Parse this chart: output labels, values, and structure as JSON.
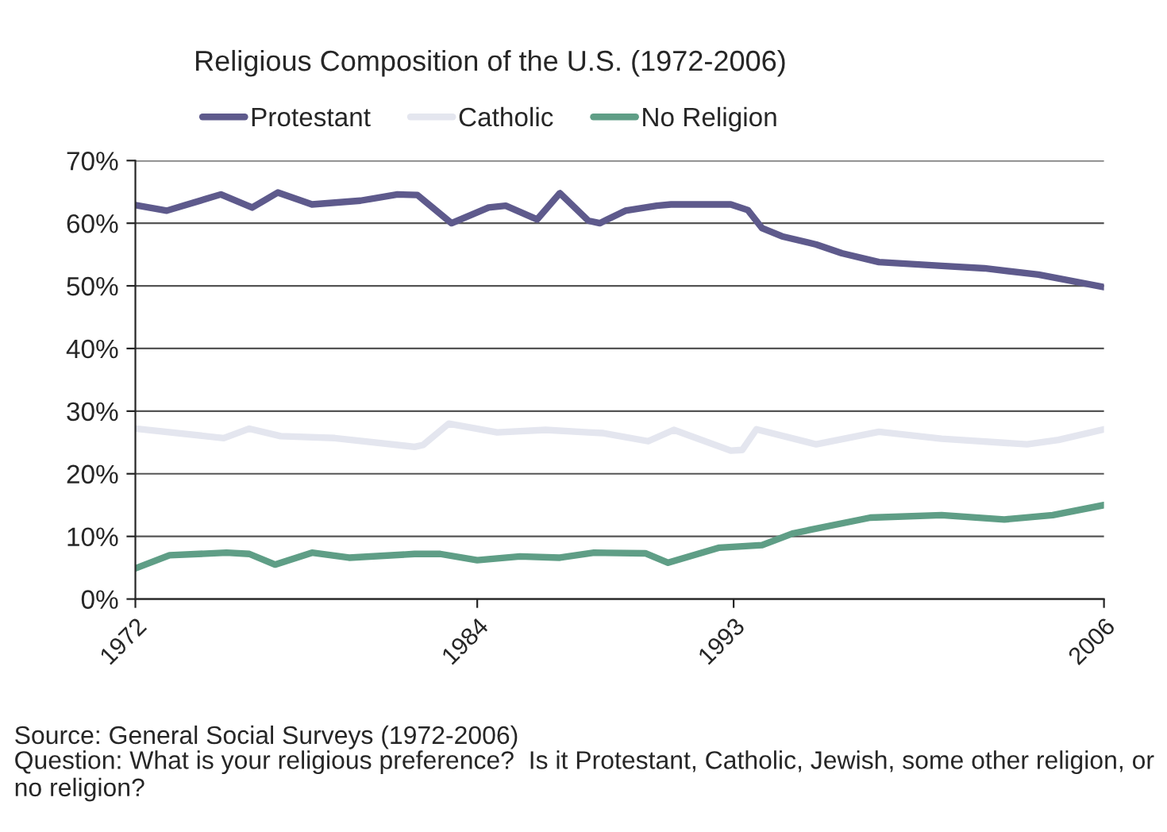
{
  "chart_data": {
    "type": "line",
    "title": "Religious Composition of the U.S. (1972-2006)",
    "xlim": [
      1972,
      2006
    ],
    "xticks": [
      1972,
      1984,
      1993,
      2006
    ],
    "ylim": [
      0,
      70
    ],
    "yticks": [
      {
        "value": 0,
        "label": "0%"
      },
      {
        "value": 10,
        "label": "10%"
      },
      {
        "value": 20,
        "label": "20%"
      },
      {
        "value": 30,
        "label": "30%"
      },
      {
        "value": 40,
        "label": "40%"
      },
      {
        "value": 50,
        "label": "50%"
      },
      {
        "value": 60,
        "label": "60%"
      },
      {
        "value": 70,
        "label": "70%"
      }
    ],
    "grid": "y",
    "legend": "top",
    "marker": "none",
    "line_style": "solid",
    "series": [
      {
        "name": "Protestant",
        "color": "#5e5a8c",
        "x": [
          1972.0,
          1973.1,
          1975.0,
          1976.1,
          1977.0,
          1978.2,
          1979.9,
          1981.2,
          1981.9,
          1983.1,
          1984.4,
          1985.0,
          1986.1,
          1986.9,
          1987.9,
          1988.3,
          1989.2,
          1990.3,
          1990.8,
          1992.9,
          1993.5,
          1994.0,
          1994.7,
          1995.9,
          1996.8,
          1998.1,
          2000.3,
          2001.8,
          2003.7,
          2006.0
        ],
        "values": [
          62.9,
          62.0,
          64.6,
          62.5,
          64.9,
          63.0,
          63.6,
          64.6,
          64.5,
          60.0,
          62.5,
          62.8,
          60.6,
          64.8,
          60.4,
          60.0,
          62.0,
          62.8,
          63.0,
          63.0,
          62.1,
          59.2,
          57.9,
          56.6,
          55.2,
          53.8,
          53.2,
          52.8,
          51.8,
          49.8
        ]
      },
      {
        "name": "Catholic",
        "color": "#e4e6ef",
        "x": [
          1972.0,
          1975.1,
          1976.0,
          1977.1,
          1979.0,
          1981.8,
          1982.1,
          1983.0,
          1984.7,
          1986.4,
          1987.9,
          1988.4,
          1990.0,
          1990.9,
          1992.9,
          1993.3,
          1993.8,
          1995.9,
          1998.1,
          2000.3,
          2003.3,
          2004.4,
          2006.0
        ],
        "values": [
          27.2,
          25.7,
          27.2,
          26.0,
          25.7,
          24.3,
          24.6,
          28.0,
          26.6,
          27.0,
          26.6,
          26.5,
          25.2,
          27.0,
          23.7,
          23.8,
          27.1,
          24.7,
          26.7,
          25.6,
          24.7,
          25.4,
          27.1
        ]
      },
      {
        "name": "No Religion",
        "color": "#5f9e86",
        "x": [
          1972.0,
          1973.2,
          1975.2,
          1976.0,
          1976.9,
          1978.2,
          1979.5,
          1981.8,
          1982.7,
          1984.0,
          1985.5,
          1986.9,
          1988.1,
          1989.9,
          1990.7,
          1992.5,
          1994.0,
          1995.1,
          1997.8,
          2000.3,
          2002.5,
          2004.2,
          2006.0
        ],
        "values": [
          4.9,
          7.0,
          7.4,
          7.2,
          5.5,
          7.4,
          6.6,
          7.2,
          7.2,
          6.2,
          6.8,
          6.6,
          7.4,
          7.3,
          5.8,
          8.2,
          8.6,
          10.5,
          13.0,
          13.4,
          12.7,
          13.4,
          15.0
        ]
      }
    ],
    "annotations": [
      "Source: General Social Surveys (1972-2006)",
      "Question: What is your religious preference?  Is it Protestant, Catholic, Jewish, some other religion, or no religion?"
    ]
  }
}
